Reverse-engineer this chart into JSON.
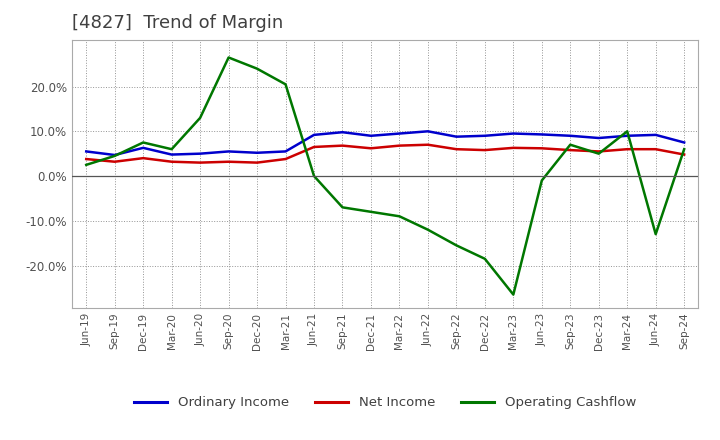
{
  "title": "[4827]  Trend of Margin",
  "title_color": "#404040",
  "background_color": "#ffffff",
  "plot_bg_color": "#ffffff",
  "grid_color": "#888888",
  "xlabel": "",
  "ylabel": "",
  "ylim": [
    -0.295,
    0.305
  ],
  "yticks": [
    -0.2,
    -0.1,
    0.0,
    0.1,
    0.2
  ],
  "ytick_labels": [
    "-20.0%",
    "-10.0%",
    "0.0%",
    "10.0%",
    "20.0%"
  ],
  "x_labels": [
    "Jun-19",
    "Sep-19",
    "Dec-19",
    "Mar-20",
    "Jun-20",
    "Sep-20",
    "Dec-20",
    "Mar-21",
    "Jun-21",
    "Sep-21",
    "Dec-21",
    "Mar-22",
    "Jun-22",
    "Sep-22",
    "Dec-22",
    "Mar-23",
    "Jun-23",
    "Sep-23",
    "Dec-23",
    "Mar-24",
    "Jun-24",
    "Sep-24"
  ],
  "ordinary_income": [
    0.055,
    0.047,
    0.063,
    0.048,
    0.05,
    0.055,
    0.052,
    0.055,
    0.092,
    0.098,
    0.09,
    0.095,
    0.1,
    0.088,
    0.09,
    0.095,
    0.093,
    0.09,
    0.085,
    0.09,
    0.092,
    0.075
  ],
  "net_income": [
    0.038,
    0.032,
    0.04,
    0.032,
    0.03,
    0.032,
    0.03,
    0.038,
    0.065,
    0.068,
    0.062,
    0.068,
    0.07,
    0.06,
    0.058,
    0.063,
    0.062,
    0.058,
    0.055,
    0.06,
    0.06,
    0.048
  ],
  "operating_cashflow": [
    0.025,
    0.045,
    0.075,
    0.06,
    0.13,
    0.265,
    0.24,
    0.205,
    0.0,
    -0.07,
    -0.08,
    -0.09,
    -0.12,
    -0.155,
    -0.185,
    -0.265,
    -0.01,
    0.07,
    0.05,
    0.1,
    -0.13,
    0.06
  ],
  "ordinary_income_color": "#0000cc",
  "net_income_color": "#cc0000",
  "operating_cashflow_color": "#007700",
  "line_width": 1.8,
  "legend_labels": [
    "Ordinary Income",
    "Net Income",
    "Operating Cashflow"
  ],
  "legend_colors": [
    "#0000cc",
    "#cc0000",
    "#007700"
  ]
}
